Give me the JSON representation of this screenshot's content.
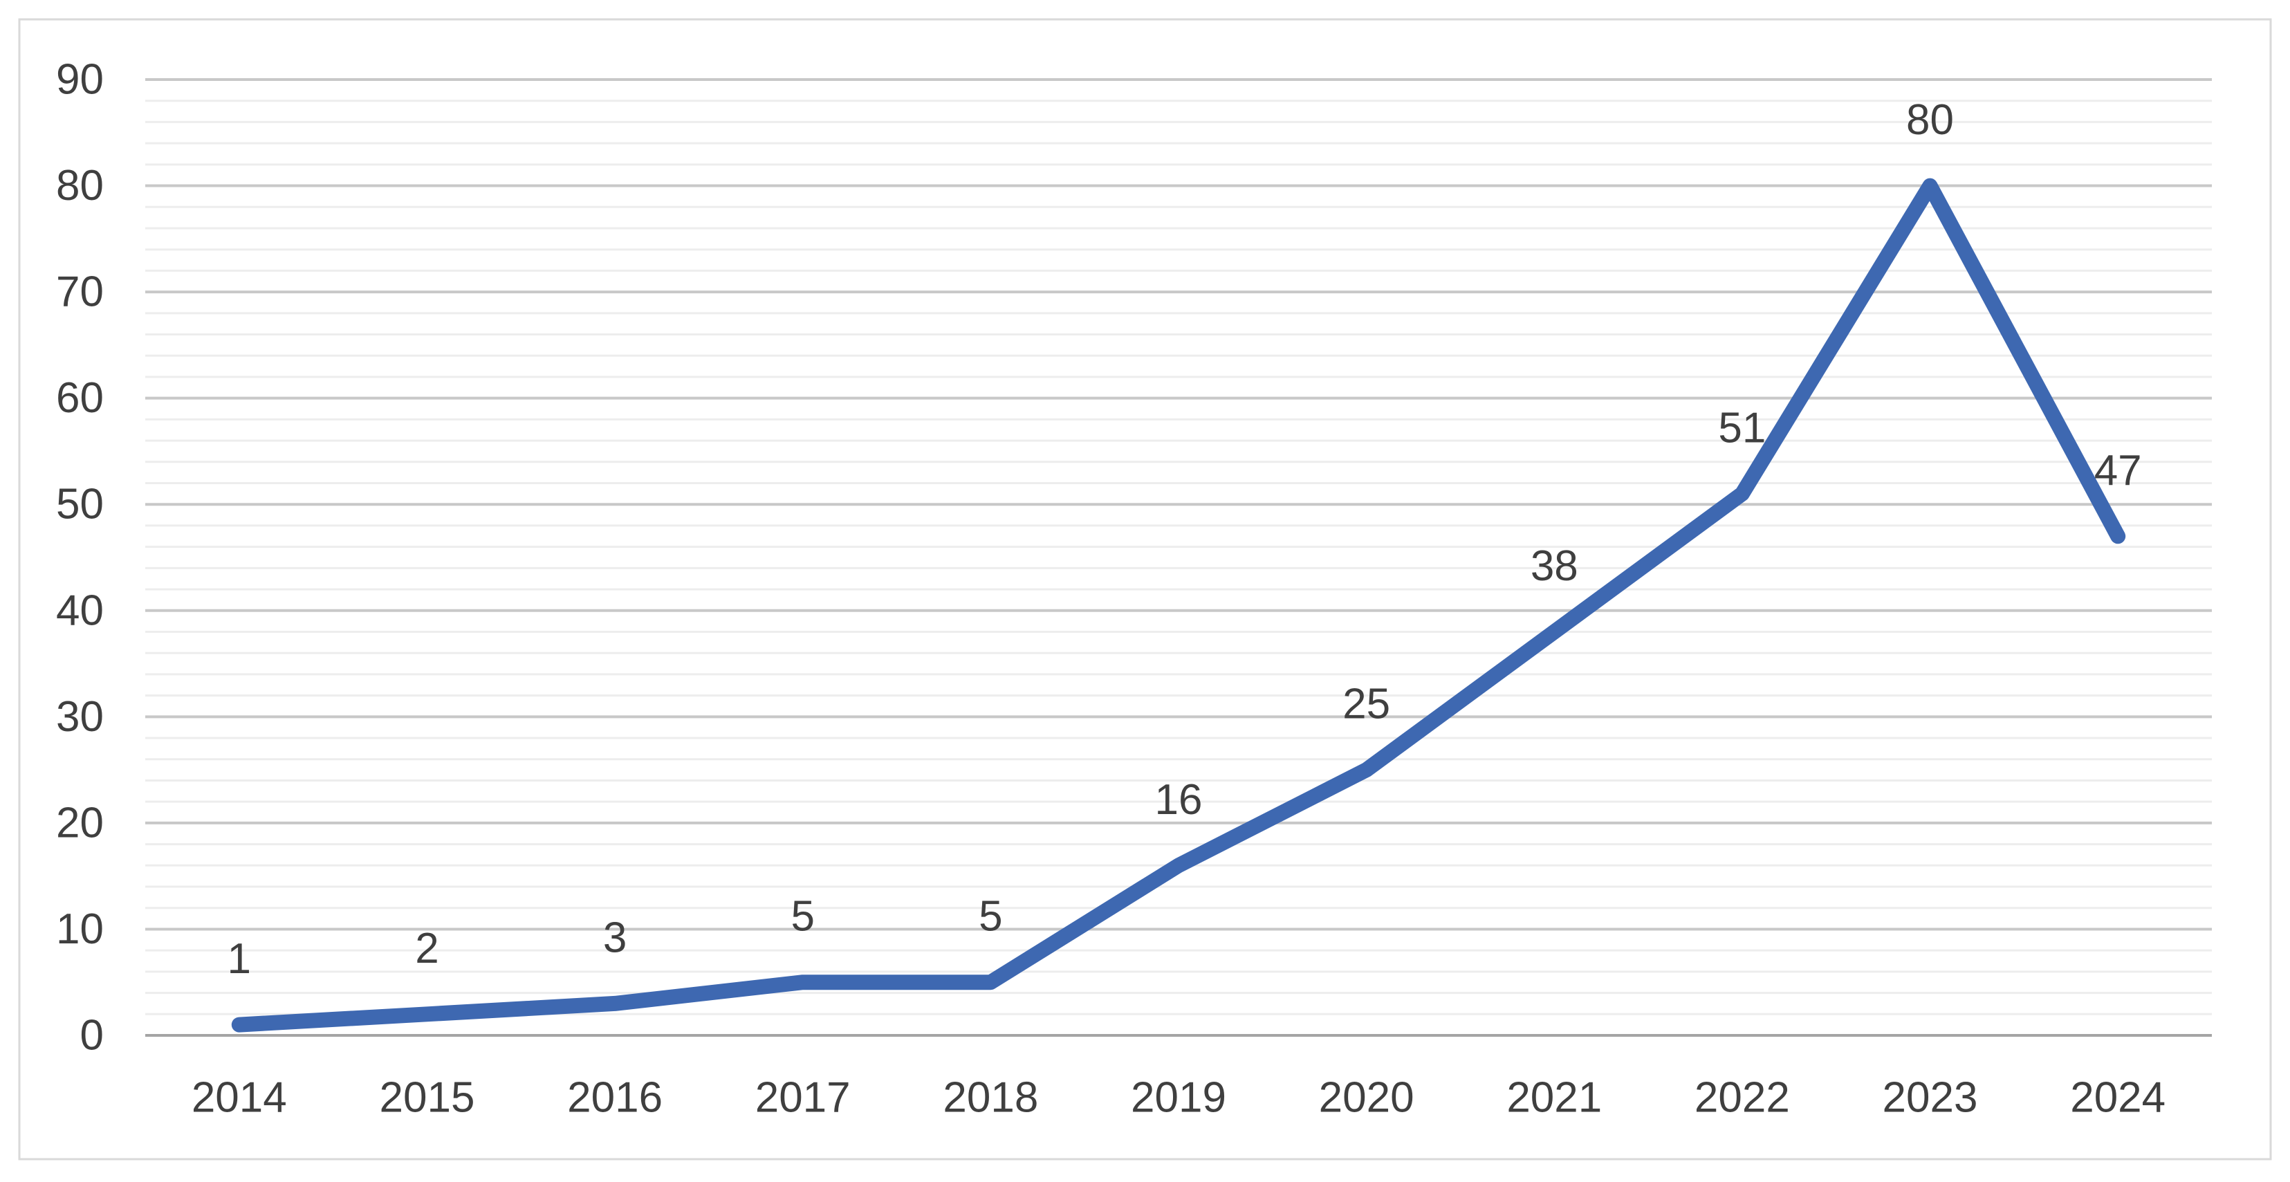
{
  "chart": {
    "background_color": "#ffffff",
    "border_color": "#d9d9d9",
    "text_color": "#3f3f3f",
    "grid_major_color": "#c8c8c8",
    "grid_minor_color": "#ededed",
    "axis_line_color": "#a5a5a5",
    "series_color": "#3e68b1",
    "line_width": 22
  },
  "chart_data": {
    "type": "line",
    "title": "",
    "xlabel": "",
    "ylabel": "",
    "categories": [
      "2014",
      "2015",
      "2016",
      "2017",
      "2018",
      "2019",
      "2020",
      "2021",
      "2022",
      "2023",
      "2024"
    ],
    "series": [
      {
        "name": "",
        "values": [
          1,
          2,
          3,
          5,
          5,
          16,
          25,
          38,
          51,
          80,
          47
        ]
      }
    ],
    "data_labels": [
      "1",
      "2",
      "3",
      "5",
      "5",
      "16",
      "25",
      "38",
      "51",
      "80",
      "47"
    ],
    "data_label_position": "above",
    "ylim": [
      0,
      90
    ],
    "y_major_unit": 10,
    "y_minor_unit": 2,
    "y_tick_labels": [
      "0",
      "10",
      "20",
      "30",
      "40",
      "50",
      "60",
      "70",
      "80",
      "90"
    ],
    "grid": "horizontal major + minor",
    "legend": "none",
    "marker": "none"
  }
}
